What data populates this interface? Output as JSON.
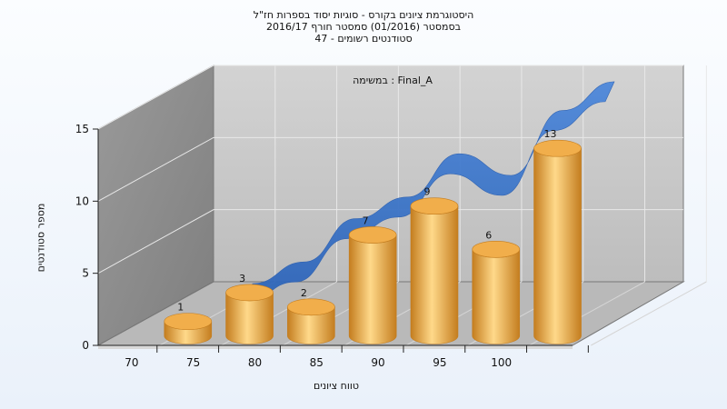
{
  "titles": {
    "line1": "היסטוגרמת ציונים בקורס - סוגיות יסוד בספרות חז\"ל",
    "line2": "בסמסטר  (01/2016)  סמסטר חורף 2016/17",
    "line3": "סטודנטים רשומים - 47"
  },
  "colors": {
    "bar": "#f1ae4b",
    "bar_dark": "#c47d1f",
    "bar_light": "#ffd98a",
    "ribbon": "#3d77cf",
    "back_wall": "#c9c9c9",
    "side_wall": "#8c8c8c",
    "floor": "#b9b9b9"
  },
  "chart_data": {
    "type": "bar",
    "style": "3d-cylinder",
    "annotation": "במשימה : Final_A",
    "xlabel": "טווח ציונים",
    "ylabel": "מספר סטודנטים",
    "categories": [
      "70",
      "75",
      "80",
      "85",
      "90",
      "95",
      "100"
    ],
    "values": [
      1,
      3,
      2,
      7,
      9,
      6,
      13
    ],
    "data_labels": [
      "1",
      "3",
      "2",
      "7",
      "9",
      "6",
      "13"
    ],
    "ylim": [
      0,
      15
    ],
    "y_ticks": [
      "0",
      "5",
      "10",
      "15"
    ],
    "grid": true,
    "legend": "none",
    "overlay": {
      "type": "area-ribbon",
      "values": [
        0,
        1.5,
        4.5,
        6,
        9,
        7.5,
        12,
        14
      ]
    }
  }
}
